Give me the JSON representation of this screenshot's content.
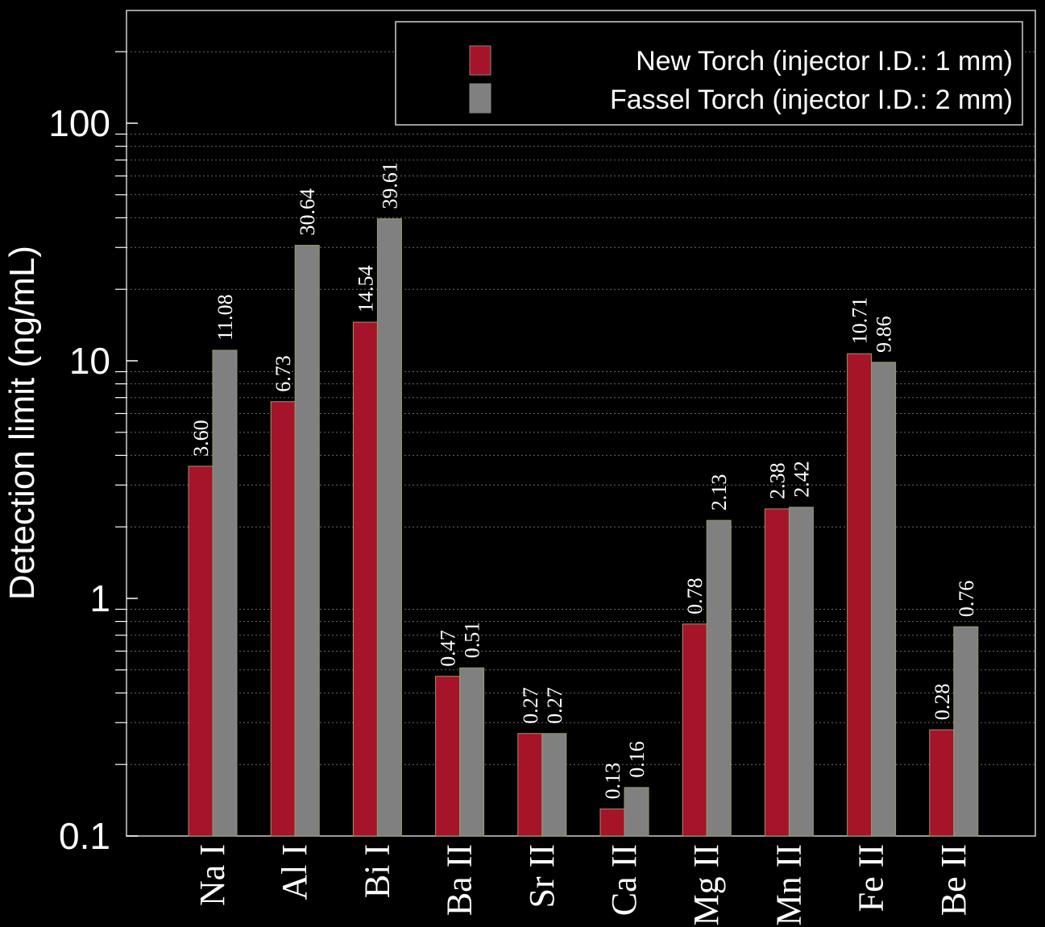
{
  "chart_data": {
    "type": "bar",
    "title": "",
    "xlabel": "",
    "ylabel": "Detection limit (ng/mL)",
    "yscale": "log",
    "ylim": [
      0.1,
      300
    ],
    "y_ticks": [
      {
        "value": 0.1,
        "label": "0.1"
      },
      {
        "value": 1,
        "label": "1"
      },
      {
        "value": 10,
        "label": "10"
      },
      {
        "value": 100,
        "label": "100"
      }
    ],
    "grid": "horizontal dotted minor gridlines",
    "legend_position": "top-right",
    "categories": [
      "Na I",
      "Al I",
      "Bi I",
      "Ba II",
      "Sr II",
      "Ca II",
      "Mg II",
      "Mn II",
      "Fe II",
      "Be II"
    ],
    "series": [
      {
        "name": "New Torch (injector I.D.: 1 mm)",
        "color": "#A51428",
        "values": [
          3.6,
          6.73,
          14.54,
          0.47,
          0.27,
          0.13,
          0.78,
          2.38,
          10.71,
          0.28
        ],
        "labels": [
          "3.60",
          "6.73",
          "14.54",
          "0.47",
          "0.27",
          "0.13",
          "0.78",
          "2.38",
          "10.71",
          "0.28"
        ]
      },
      {
        "name": "Fassel Torch (injector I.D.: 2 mm)",
        "color": "#808080",
        "values": [
          11.08,
          30.64,
          39.61,
          0.51,
          0.27,
          0.16,
          2.13,
          2.42,
          9.86,
          0.76
        ],
        "labels": [
          "11.08",
          "30.64",
          "39.61",
          "0.51",
          "0.27",
          "0.16",
          "2.13",
          "2.42",
          "9.86",
          "0.76"
        ]
      }
    ]
  }
}
